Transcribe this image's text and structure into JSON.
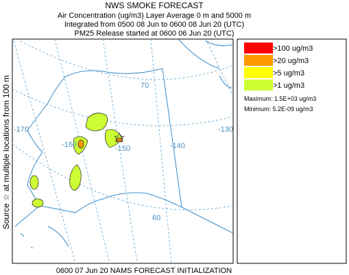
{
  "header": {
    "title": "NWS SMOKE FORECAST",
    "lines": [
      "Air Concentration (ug/m3) Layer Average    0 m and  5000 m",
      "Integrated from 0500 08 Jun to 0600 08 Jun 20 (UTC)",
      "PM25 Release started at 0600 06 Jun 20 (UTC)"
    ]
  },
  "side_label": "Source ☆ at multiple locations      from  100 m",
  "map": {
    "labels": [
      "-170",
      "-160",
      "-150",
      "-140",
      "-130",
      "70",
      "60"
    ]
  },
  "legend": {
    "items": [
      {
        "label": ">100 ug/m3",
        "color": "#ff0000"
      },
      {
        "label": ">20 ug/m3",
        "color": "#ff9900"
      },
      {
        "label": ">5 ug/m3",
        "color": "#ffff00"
      },
      {
        "label": ">1 ug/m3",
        "color": "#ccff33"
      }
    ],
    "maximum": "Maximum: 1.5E+03 ug/m3",
    "minimum": "Minimum: 5.2E-09 ug/m3"
  },
  "footer": "0600 07 Jun 20 NAMS FORECAST INITIALIZATION"
}
